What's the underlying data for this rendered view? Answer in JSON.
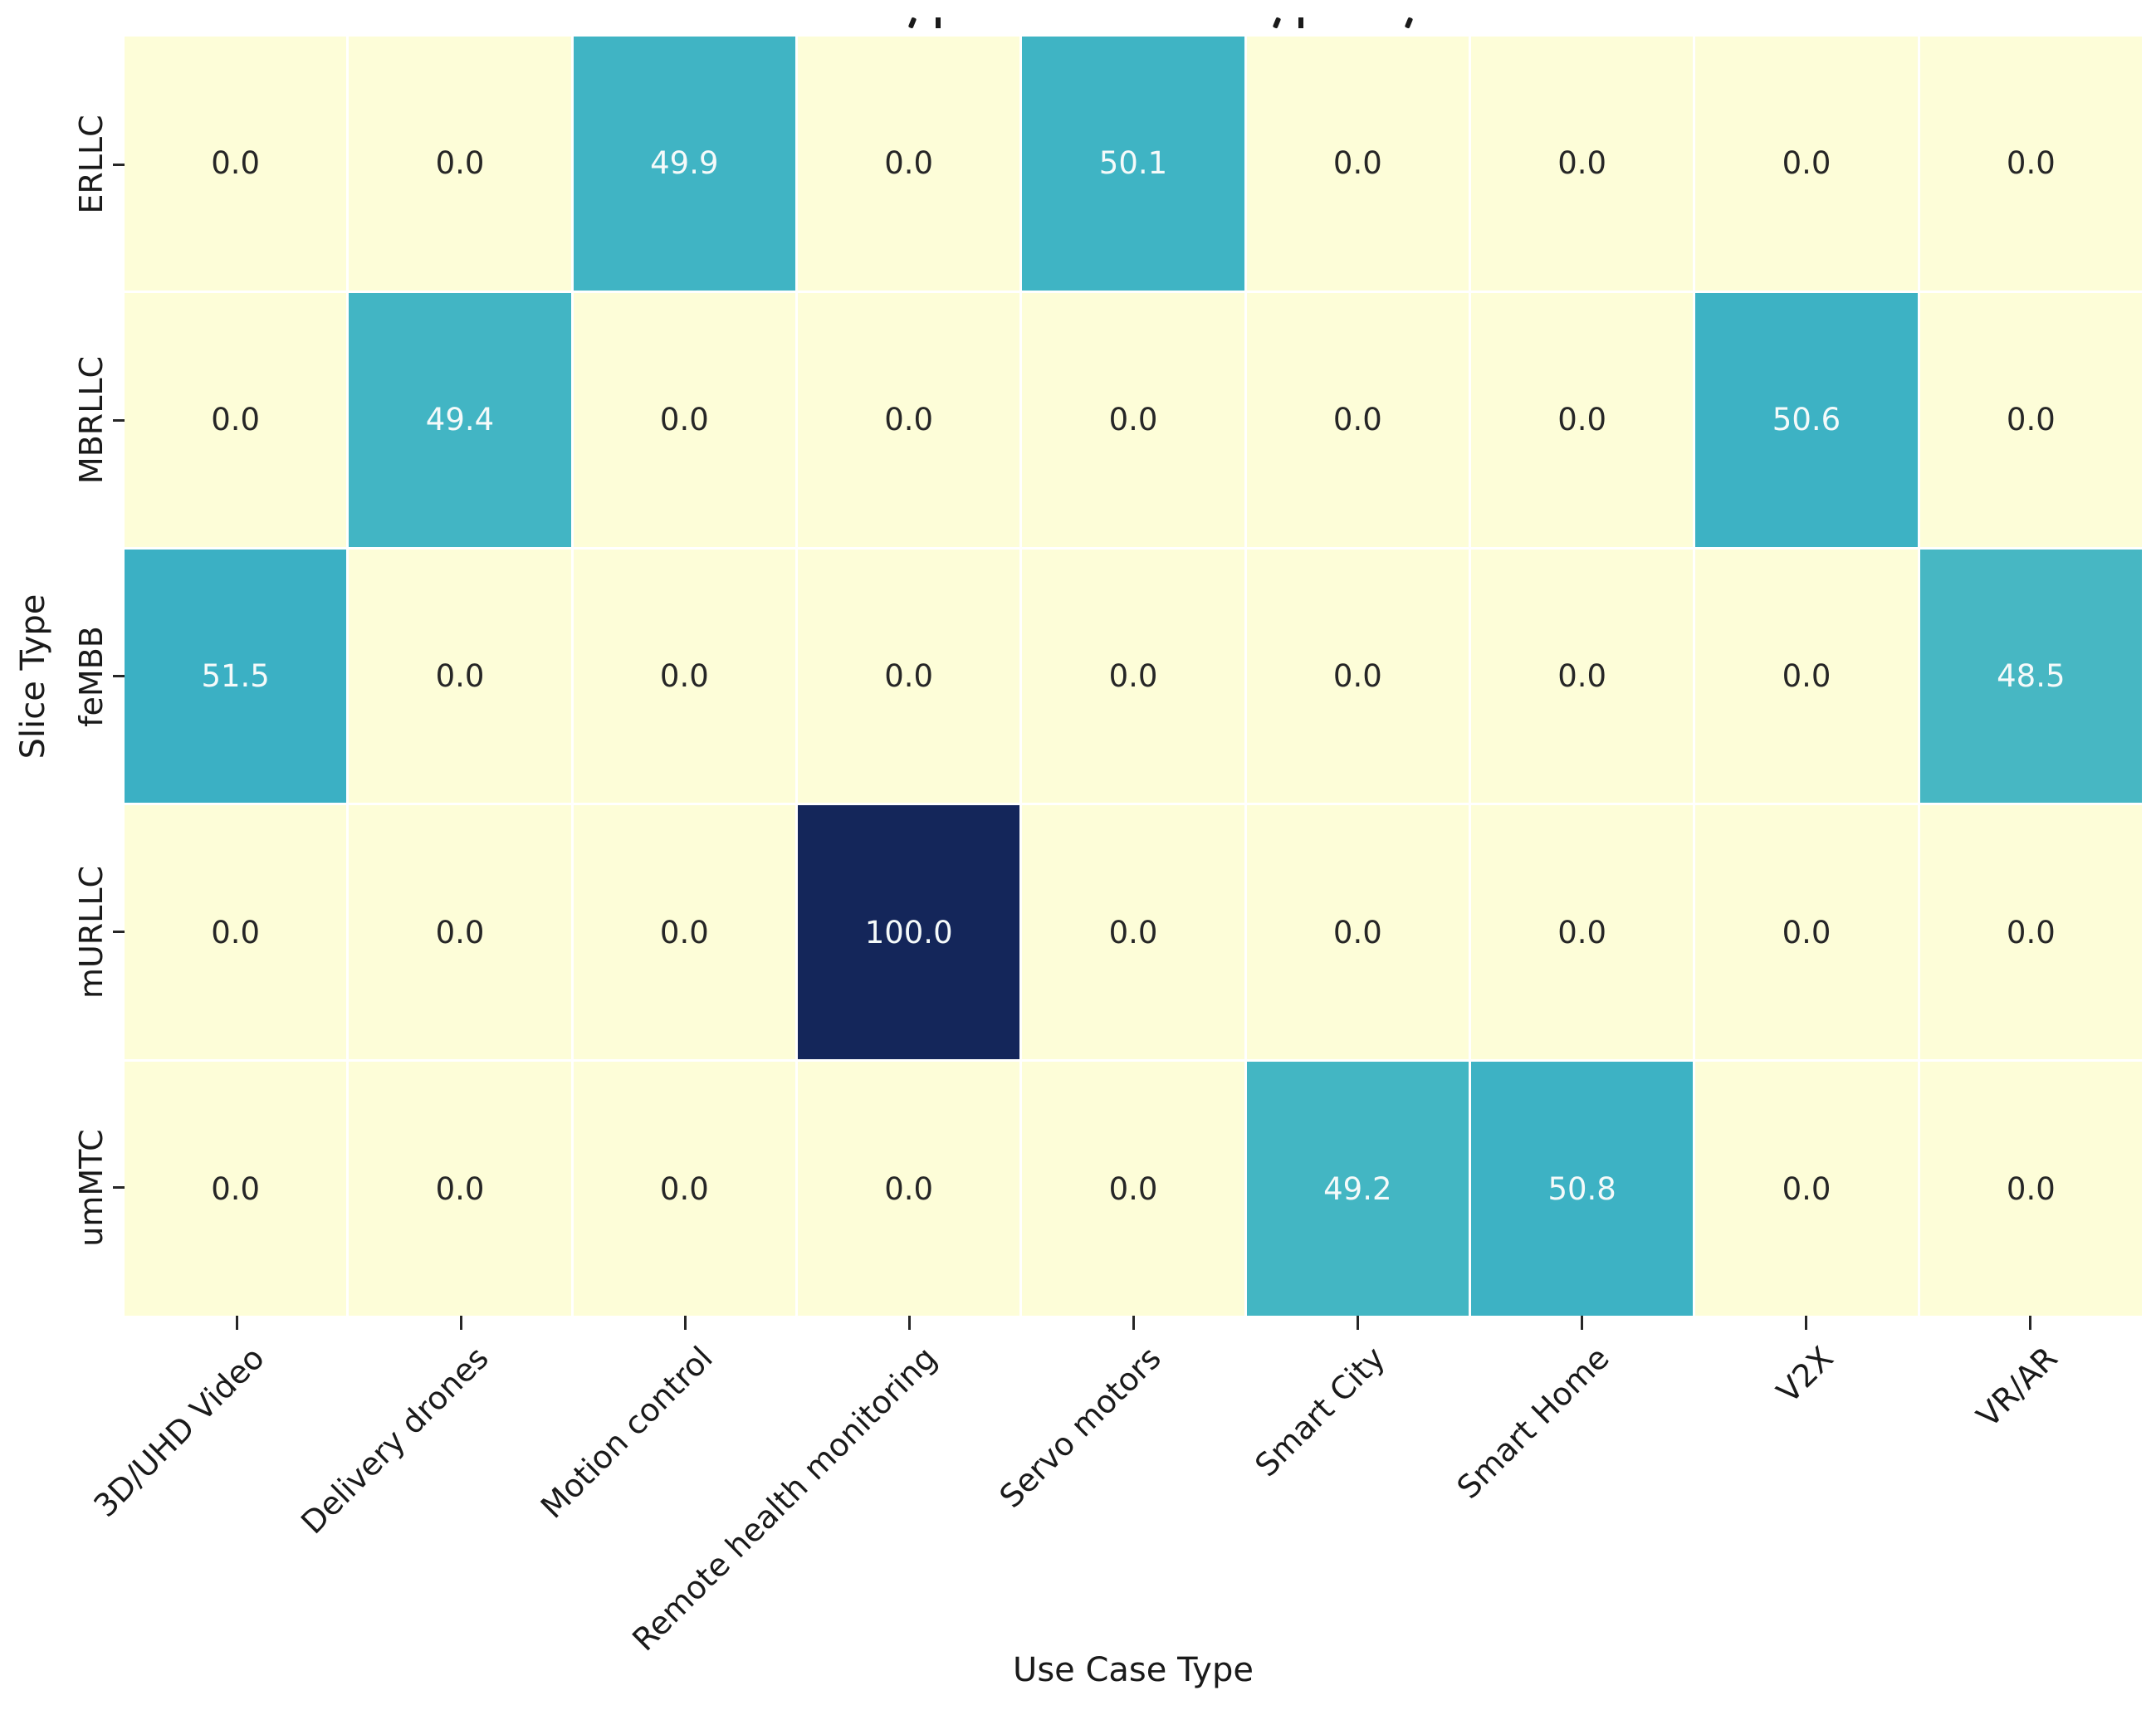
{
  "chart_data": {
    "type": "heatmap",
    "xlabel": "Use Case Type",
    "ylabel": "Slice Type",
    "rows": [
      "ERLLC",
      "MBRLLC",
      "feMBB",
      "mURLLC",
      "umMTC"
    ],
    "columns": [
      "3D/UHD Video",
      "Delivery drones",
      "Motion control",
      "Remote health monitoring",
      "Servo motors",
      "Smart City",
      "Smart Home",
      "V2X",
      "VR/AR"
    ],
    "values": [
      [
        0.0,
        0.0,
        49.9,
        0.0,
        50.1,
        0.0,
        0.0,
        0.0,
        0.0
      ],
      [
        0.0,
        49.4,
        0.0,
        0.0,
        0.0,
        0.0,
        0.0,
        50.6,
        0.0
      ],
      [
        51.5,
        0.0,
        0.0,
        0.0,
        0.0,
        0.0,
        0.0,
        0.0,
        48.5
      ],
      [
        0.0,
        0.0,
        0.0,
        100.0,
        0.0,
        0.0,
        0.0,
        0.0,
        0.0
      ],
      [
        0.0,
        0.0,
        0.0,
        0.0,
        0.0,
        49.2,
        50.8,
        0.0,
        0.0
      ]
    ],
    "value_decimals": 1,
    "value_range": [
      0,
      100
    ],
    "grid_on": true,
    "legend_position": "none",
    "colormap": {
      "name": "YlGnBu",
      "stops": [
        "#fdfdd8",
        "#edf8b1",
        "#c7e9b4",
        "#7fcdbb",
        "#3fb4c4",
        "#1d91c0",
        "#225ea8",
        "#253494",
        "#14265a"
      ]
    },
    "colors": {
      "gridline": "#ffffff",
      "annotation_dark": "#262626",
      "annotation_light": "#f5fafa",
      "axis_text": "#1a1a1a"
    }
  }
}
